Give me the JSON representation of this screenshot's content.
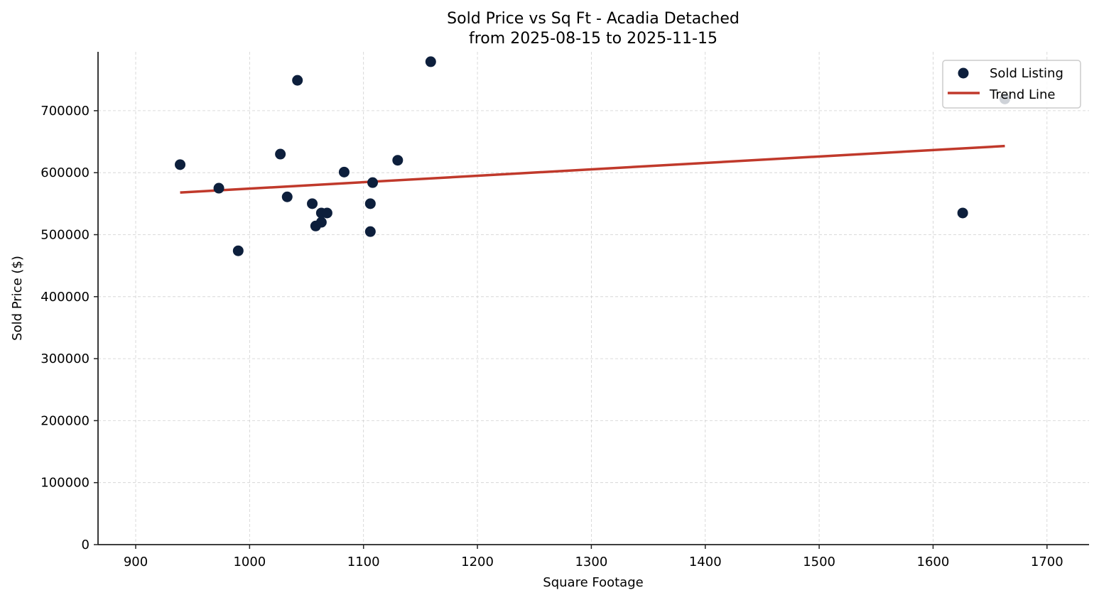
{
  "chart_data": {
    "type": "scatter",
    "title": "Sold Price vs Sq Ft - Acadia Detached",
    "subtitle": "from 2025-08-15 to 2025-11-15",
    "xlabel": "Square Footage",
    "ylabel": "Sold Price ($)",
    "xlim": [
      866,
      1735
    ],
    "ylim": [
      0,
      790000
    ],
    "xticks": [
      900,
      1000,
      1100,
      1200,
      1300,
      1400,
      1500,
      1600,
      1700
    ],
    "yticks": [
      0,
      100000,
      200000,
      300000,
      400000,
      500000,
      600000,
      700000
    ],
    "grid": true,
    "legend_position": "upper right",
    "legend": [
      "Sold Listing",
      "Trend Line"
    ],
    "colors": {
      "points": "#0d1f3c",
      "trend": "#c0392b",
      "grid": "#d0d0d0"
    },
    "series": [
      {
        "name": "Sold Listing",
        "type": "scatter",
        "x": [
          939,
          973,
          990,
          1027,
          1033,
          1042,
          1055,
          1058,
          1063,
          1063,
          1068,
          1083,
          1106,
          1106,
          1108,
          1130,
          1159,
          1626,
          1663
        ],
        "y": [
          613000,
          575000,
          474000,
          630000,
          561000,
          749000,
          550000,
          514000,
          535000,
          520000,
          535000,
          601000,
          550000,
          505000,
          584000,
          620000,
          779000,
          535000,
          719000
        ]
      },
      {
        "name": "Trend Line",
        "type": "line",
        "x": [
          939,
          1663
        ],
        "y": [
          568000,
          643000
        ]
      }
    ]
  }
}
